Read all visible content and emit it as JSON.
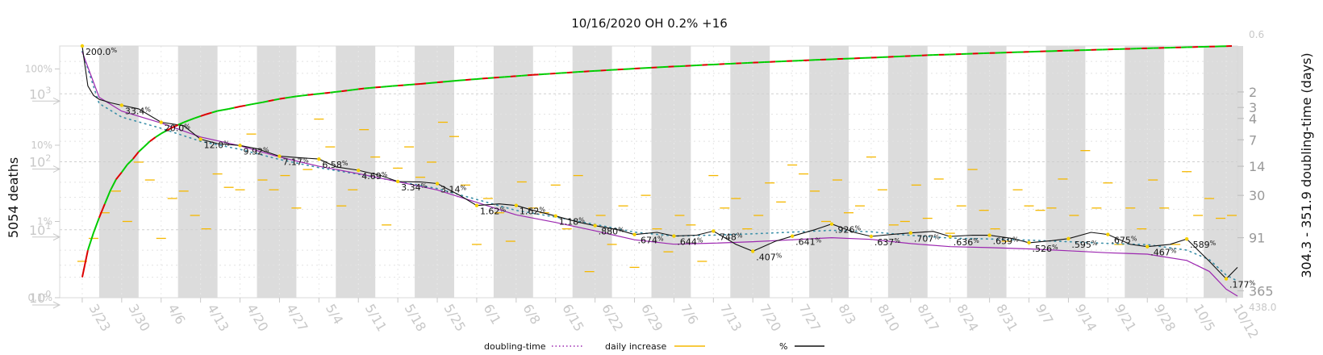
{
  "chart_data": {
    "type": "line",
    "title": "10/16/2020 OH 0.2% +16",
    "ylabel_left": "5054 deaths",
    "ylabel_right": "304.3 - 351.9 doubling-time (days)",
    "x_ticks": [
      "3/23",
      "3/30",
      "4/6",
      "4/13",
      "4/20",
      "4/27",
      "5/4",
      "5/11",
      "5/18",
      "5/25",
      "6/1",
      "6/8",
      "6/15",
      "6/22",
      "6/29",
      "7/6",
      "7/13",
      "7/20",
      "7/27",
      "8/3",
      "8/10",
      "8/17",
      "8/24",
      "8/31",
      "9/7",
      "9/14",
      "9/21",
      "9/28",
      "10/5",
      "10/12"
    ],
    "x_range_days": [
      -4,
      205
    ],
    "left_axis": {
      "scale": "log",
      "range": [
        1,
        5054
      ],
      "ticks": [
        {
          "value": 1,
          "base": "10",
          "exp": "0"
        },
        {
          "value": 10,
          "base": "10",
          "exp": "1"
        },
        {
          "value": 100,
          "base": "10",
          "exp": "2"
        },
        {
          "value": 1000,
          "base": "10",
          "exp": "3"
        }
      ]
    },
    "pct_axis": {
      "ticks": [
        {
          "value": 100,
          "label": "100%"
        },
        {
          "value": 10,
          "label": "10%"
        },
        {
          "value": 1,
          "label": "1%"
        },
        {
          "value": 0.1,
          "label": "0.1%"
        }
      ],
      "range_label_bottom": "0.1%",
      "range_label_top": ""
    },
    "right_axis": {
      "label_top": "0.6",
      "label_bottom": "438.0",
      "ticks": [
        2,
        3,
        4,
        7,
        14,
        30,
        91,
        365
      ]
    },
    "cumulative_deaths": {
      "days": [
        0,
        1,
        2,
        3,
        4,
        5,
        6,
        7,
        8,
        9,
        10,
        11,
        12,
        13,
        14,
        16,
        18,
        20,
        22,
        24,
        26,
        28,
        30,
        32,
        35,
        38,
        42,
        46,
        50,
        55,
        60,
        66,
        72,
        80,
        90,
        100,
        110,
        120,
        130,
        140,
        150,
        160,
        170,
        180,
        190,
        200,
        204
      ],
      "values": [
        2,
        5,
        9,
        15,
        24,
        38,
        55,
        70,
        91,
        110,
        140,
        167,
        200,
        230,
        260,
        320,
        380,
        440,
        500,
        560,
        600,
        650,
        700,
        750,
        840,
        920,
        1000,
        1090,
        1200,
        1300,
        1400,
        1550,
        1700,
        1900,
        2150,
        2400,
        2650,
        2900,
        3150,
        3400,
        3700,
        3950,
        4200,
        4450,
        4700,
        4950,
        5054
      ]
    },
    "percent_increase_labels": [
      {
        "day": 0,
        "text": "200.0"
      },
      {
        "day": 7,
        "text": "33.4"
      },
      {
        "day": 14,
        "text": "20.0"
      },
      {
        "day": 21,
        "text": "12.0"
      },
      {
        "day": 28,
        "text": "9.92"
      },
      {
        "day": 35,
        "text": "7.17"
      },
      {
        "day": 42,
        "text": "6.58"
      },
      {
        "day": 49,
        "text": "4.69"
      },
      {
        "day": 56,
        "text": "3.34"
      },
      {
        "day": 63,
        "text": "3.14"
      },
      {
        "day": 70,
        "text": "1.62"
      },
      {
        "day": 77,
        "text": "1.62"
      },
      {
        "day": 84,
        "text": "1.18"
      },
      {
        "day": 91,
        "text": ".880"
      },
      {
        "day": 98,
        "text": ".674"
      },
      {
        "day": 105,
        "text": ".644"
      },
      {
        "day": 112,
        "text": ".748"
      },
      {
        "day": 119,
        "text": ".407"
      },
      {
        "day": 126,
        "text": ".641"
      },
      {
        "day": 133,
        "text": ".926"
      },
      {
        "day": 140,
        "text": ".637"
      },
      {
        "day": 147,
        "text": ".707"
      },
      {
        "day": 154,
        "text": ".636"
      },
      {
        "day": 161,
        "text": ".659"
      },
      {
        "day": 168,
        "text": ".526"
      },
      {
        "day": 175,
        "text": ".595"
      },
      {
        "day": 182,
        "text": ".675"
      },
      {
        "day": 189,
        "text": ".467"
      },
      {
        "day": 196,
        "text": ".589"
      },
      {
        "day": 203,
        "text": ".177"
      }
    ],
    "percent_suffix": "%",
    "percent_smooth": {
      "days": [
        0,
        1,
        2,
        3,
        5,
        7,
        10,
        14,
        18,
        21,
        24,
        28,
        31,
        35,
        38,
        42,
        45,
        49,
        53,
        56,
        60,
        63,
        67,
        70,
        74,
        77,
        80,
        84,
        88,
        91,
        95,
        98,
        102,
        105,
        109,
        112,
        116,
        119,
        123,
        126,
        130,
        133,
        137,
        140,
        144,
        147,
        151,
        154,
        158,
        161,
        165,
        168,
        172,
        175,
        179,
        182,
        186,
        189,
        193,
        196,
        200,
        203,
        205
      ],
      "values": [
        200,
        60,
        45,
        40,
        36,
        33.4,
        30,
        20,
        18,
        12,
        10.5,
        9.92,
        9,
        7.17,
        6.9,
        6.58,
        5.2,
        4.69,
        4.0,
        3.34,
        3.3,
        3.14,
        2.2,
        1.62,
        1.7,
        1.62,
        1.4,
        1.18,
        0.98,
        0.88,
        0.78,
        0.674,
        0.72,
        0.644,
        0.66,
        0.748,
        0.5,
        0.407,
        0.55,
        0.641,
        0.78,
        0.926,
        0.72,
        0.637,
        0.68,
        0.707,
        0.74,
        0.636,
        0.66,
        0.659,
        0.6,
        0.526,
        0.56,
        0.595,
        0.72,
        0.675,
        0.5,
        0.467,
        0.5,
        0.589,
        0.3,
        0.177,
        0.25
      ]
    },
    "doubling_time": {
      "days": [
        0,
        3,
        7,
        14,
        21,
        28,
        35,
        42,
        49,
        56,
        63,
        70,
        77,
        84,
        91,
        98,
        105,
        112,
        119,
        126,
        133,
        140,
        147,
        154,
        161,
        168,
        175,
        182,
        189,
        196,
        200,
        203,
        205
      ],
      "values_days": [
        0.7,
        2.3,
        3.3,
        4.5,
        6.5,
        8.2,
        11,
        14,
        17,
        21,
        26,
        36,
        50,
        61,
        76,
        96,
        108,
        105,
        101,
        96,
        91,
        95,
        106,
        115,
        118,
        122,
        128,
        135,
        140,
        165,
        220,
        350,
        420
      ]
    },
    "daily_increase_pct": {
      "days": [
        0,
        2,
        4,
        6,
        8,
        10,
        12,
        14,
        16,
        18,
        20,
        22,
        24,
        26,
        28,
        30,
        32,
        34,
        36,
        38,
        40,
        42,
        44,
        46,
        48,
        50,
        52,
        54,
        56,
        58,
        60,
        62,
        64,
        66,
        68,
        70,
        72,
        74,
        76,
        78,
        80,
        82,
        84,
        86,
        88,
        90,
        92,
        94,
        96,
        98,
        100,
        102,
        104,
        106,
        108,
        110,
        112,
        114,
        116,
        118,
        120,
        122,
        124,
        126,
        128,
        130,
        132,
        134,
        136,
        138,
        140,
        142,
        144,
        146,
        148,
        150,
        152,
        154,
        156,
        158,
        160,
        162,
        164,
        166,
        168,
        170,
        172,
        174,
        176,
        178,
        180,
        182,
        184,
        186,
        188,
        190,
        192,
        194,
        196,
        198,
        200,
        202,
        204
      ],
      "values": [
        0.3,
        0.6,
        1.3,
        2.5,
        1.0,
        6.0,
        3.5,
        0.6,
        2.0,
        2.5,
        1.2,
        0.8,
        4.2,
        2.8,
        2.6,
        14.0,
        3.5,
        2.6,
        4.0,
        1.5,
        4.8,
        22.0,
        9.5,
        1.6,
        2.6,
        16.0,
        7.0,
        0.9,
        5.0,
        9.5,
        3.8,
        6.0,
        20.0,
        13.0,
        3.0,
        0.5,
        2.0,
        1.3,
        0.55,
        3.3,
        1.5,
        1.3,
        3.0,
        0.8,
        4.0,
        0.22,
        1.2,
        0.5,
        1.6,
        0.25,
        2.2,
        0.8,
        0.4,
        1.2,
        0.9,
        0.3,
        4.0,
        1.5,
        2.0,
        0.8,
        1.2,
        3.2,
        1.8,
        5.5,
        4.2,
        2.5,
        1.0,
        3.5,
        1.3,
        1.6,
        7.0,
        2.6,
        0.9,
        1.0,
        3.0,
        1.1,
        3.6,
        0.7,
        1.6,
        4.8,
        1.4,
        0.8,
        0.55,
        2.6,
        1.6,
        1.4,
        1.5,
        3.6,
        1.2,
        8.5,
        1.5,
        3.2,
        0.5,
        1.5,
        0.8,
        3.5,
        1.5,
        0.5,
        4.5,
        1.2,
        2.0,
        1.1,
        1.2
      ]
    },
    "legend": [
      {
        "key": "doubling",
        "label": "doubling-time",
        "color": "#9c27b0",
        "style": "dotted"
      },
      {
        "key": "daily",
        "label": "daily increase",
        "color": "#f5b800",
        "style": "solid"
      },
      {
        "key": "pct",
        "label": "%",
        "color": "#111111",
        "style": "solid"
      }
    ],
    "colors": {
      "cum_increase": "#00cc00",
      "cum_decrease": "#dd0000",
      "pct_line": "#111111",
      "doubling_line": "#9c27b0",
      "growth_dotted": "#3a8fa8",
      "daily": "#f5b800",
      "band": "#dcdcdc"
    }
  }
}
